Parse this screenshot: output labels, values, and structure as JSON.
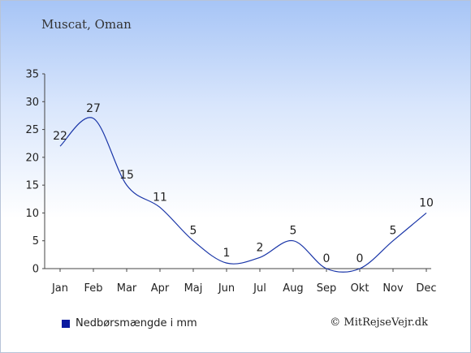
{
  "title": "Muscat, Oman",
  "legend_label": "Nedbørsmængde i mm",
  "copyright": "© MitRejseVejr.dk",
  "colors": {
    "series": "#1a36a8",
    "legend": "#0a1aa0",
    "axis": "#444444"
  },
  "chart_data": {
    "type": "line",
    "categories": [
      "Jan",
      "Feb",
      "Mar",
      "Apr",
      "Maj",
      "Jun",
      "Jul",
      "Aug",
      "Sep",
      "Okt",
      "Nov",
      "Dec"
    ],
    "series": [
      {
        "name": "Nedbørsmængde i mm",
        "values": [
          22,
          27,
          15,
          11,
          5,
          1,
          2,
          5,
          0,
          0,
          5,
          10
        ]
      }
    ],
    "data_labels": [
      "22",
      "27",
      "15",
      "11",
      "5",
      "1",
      "2",
      "5",
      "0",
      "0",
      "5",
      "10"
    ],
    "ylim": [
      0,
      35
    ],
    "yticks": [
      0,
      5,
      10,
      15,
      20,
      25,
      30,
      35
    ],
    "grid": false,
    "legend_position": "bottom-left"
  }
}
